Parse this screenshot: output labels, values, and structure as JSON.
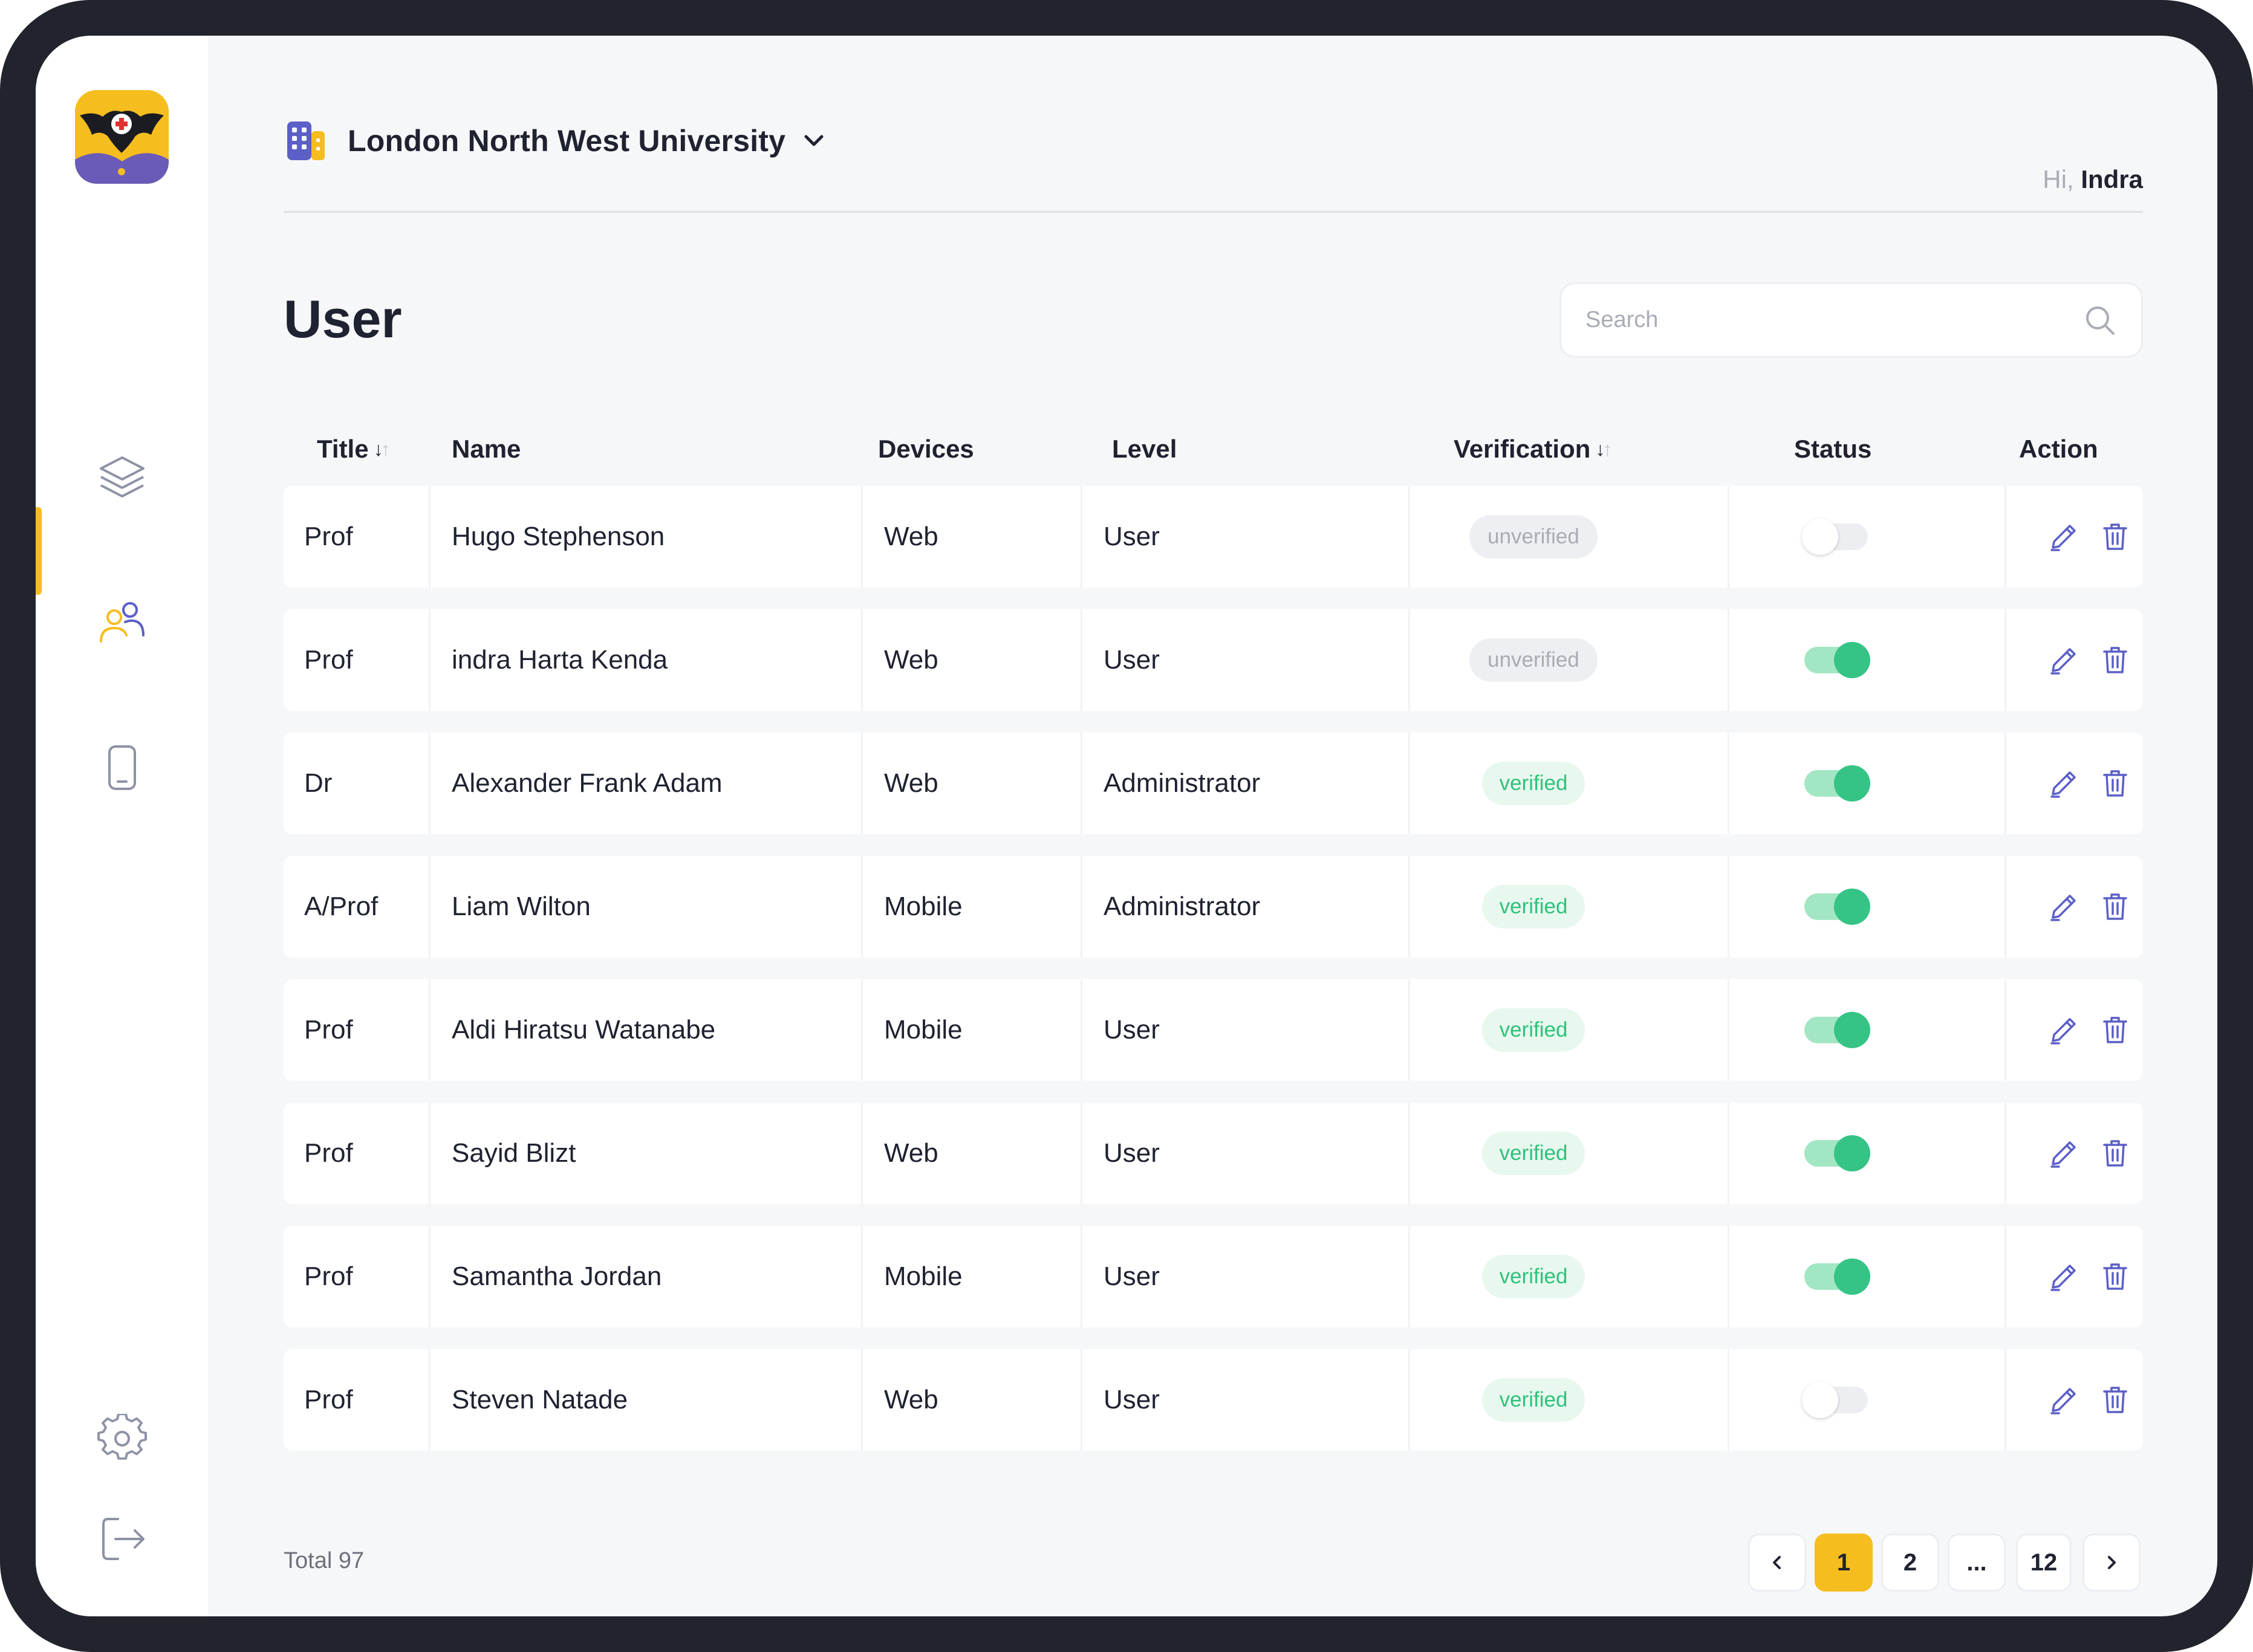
{
  "header": {
    "organization": "London North West University",
    "greeting_prefix": "Hi,",
    "user_name": "Indra"
  },
  "page": {
    "title": "User"
  },
  "search": {
    "placeholder": "Search"
  },
  "sidebar": {
    "items": [
      {
        "icon": "layers-icon",
        "active": false
      },
      {
        "icon": "users-icon",
        "active": true
      },
      {
        "icon": "device-icon",
        "active": false
      }
    ],
    "bottom": [
      {
        "icon": "gear-icon"
      },
      {
        "icon": "logout-icon"
      }
    ]
  },
  "table": {
    "columns": {
      "title": "Title",
      "name": "Name",
      "devices": "Devices",
      "level": "Level",
      "verification": "Verification",
      "status": "Status",
      "action": "Action"
    },
    "rows": [
      {
        "title": "Prof",
        "name": "Hugo Stephenson",
        "device": "Web",
        "level": "User",
        "verification": "unverified",
        "status": false
      },
      {
        "title": "Prof",
        "name": "indra Harta Kenda",
        "device": "Web",
        "level": "User",
        "verification": "unverified",
        "status": true
      },
      {
        "title": "Dr",
        "name": "Alexander Frank Adam",
        "device": "Web",
        "level": "Administrator",
        "verification": "verified",
        "status": true
      },
      {
        "title": "A/Prof",
        "name": "Liam Wilton",
        "device": "Mobile",
        "level": "Administrator",
        "verification": "verified",
        "status": true
      },
      {
        "title": "Prof",
        "name": "Aldi Hiratsu Watanabe",
        "device": "Mobile",
        "level": "User",
        "verification": "verified",
        "status": true
      },
      {
        "title": "Prof",
        "name": "Sayid  Blizt",
        "device": "Web",
        "level": "User",
        "verification": "verified",
        "status": true
      },
      {
        "title": "Prof",
        "name": "Samantha Jordan",
        "device": "Mobile",
        "level": "User",
        "verification": "verified",
        "status": true
      },
      {
        "title": "Prof",
        "name": "Steven Natade",
        "device": "Web",
        "level": "User",
        "verification": "verified",
        "status": false
      }
    ]
  },
  "footer": {
    "total_label": "Total 97",
    "pages": [
      "1",
      "2",
      "...",
      "12"
    ],
    "current_page": "1"
  },
  "colors": {
    "accent": "#f6bd1e",
    "verified": "#2fc27b",
    "toggle_on": "#35c486",
    "brand_purple": "#5b5fc7"
  }
}
